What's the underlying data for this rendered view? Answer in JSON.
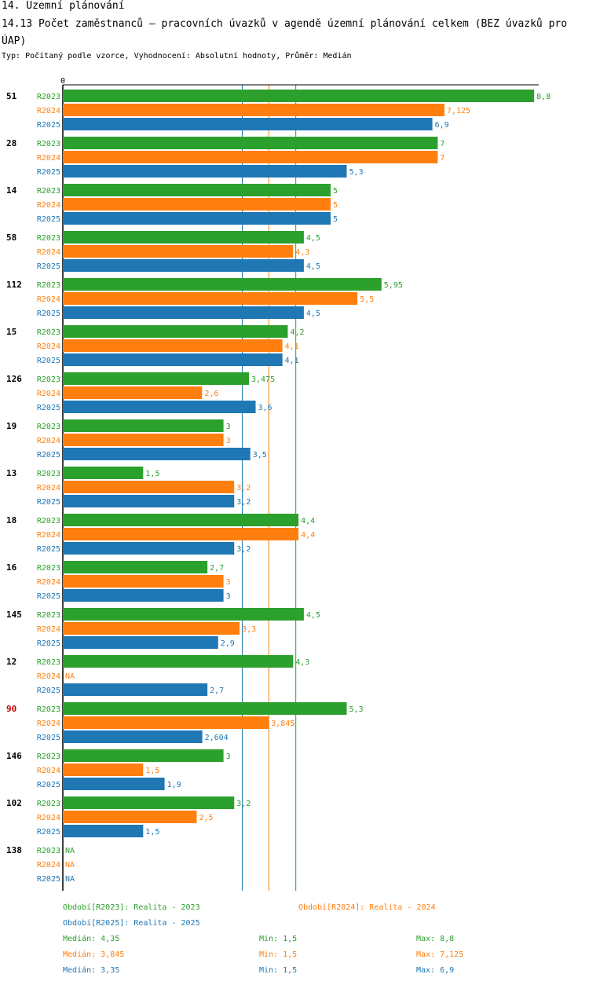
{
  "section_title": "14. Územní plánování",
  "chart_title": "14.13 Počet zaměstnanců – pracovních úvazků v agendě územní plánování celkem (BEZ úvazků pro ÚAP)",
  "subtitle": "Typ: Počítaný podle vzorce, Vyhodnocení: Absolutní hodnoty, Průměr: Medián",
  "colors": {
    "R2023": "#2ca02c",
    "R2024": "#ff7f0e",
    "R2025": "#1f77b4",
    "highlight": "#cc0000"
  },
  "chart_data": {
    "type": "bar",
    "orientation": "horizontal",
    "x_axis_label": "0",
    "xlim": [
      0,
      8.8
    ],
    "series_names": [
      "R2023",
      "R2024",
      "R2025"
    ],
    "groups": [
      {
        "id": "51",
        "highlight": false,
        "values": [
          8.8,
          7.125,
          6.9
        ],
        "labels": [
          "8,8",
          "7,125",
          "6,9"
        ]
      },
      {
        "id": "28",
        "highlight": false,
        "values": [
          7,
          7,
          5.3
        ],
        "labels": [
          "7",
          "7",
          "5,3"
        ]
      },
      {
        "id": "14",
        "highlight": false,
        "values": [
          5,
          5,
          5
        ],
        "labels": [
          "5",
          "5",
          "5"
        ]
      },
      {
        "id": "58",
        "highlight": false,
        "values": [
          4.5,
          4.3,
          4.5
        ],
        "labels": [
          "4,5",
          "4,3",
          "4,5"
        ]
      },
      {
        "id": "112",
        "highlight": false,
        "values": [
          5.95,
          5.5,
          4.5
        ],
        "labels": [
          "5,95",
          "5,5",
          "4,5"
        ]
      },
      {
        "id": "15",
        "highlight": false,
        "values": [
          4.2,
          4.1,
          4.1
        ],
        "labels": [
          "4,2",
          "4,1",
          "4,1"
        ]
      },
      {
        "id": "126",
        "highlight": false,
        "values": [
          3.475,
          2.6,
          3.6
        ],
        "labels": [
          "3,475",
          "2,6",
          "3,6"
        ]
      },
      {
        "id": "19",
        "highlight": false,
        "values": [
          3,
          3,
          3.5
        ],
        "labels": [
          "3",
          "3",
          "3,5"
        ]
      },
      {
        "id": "13",
        "highlight": false,
        "values": [
          1.5,
          3.2,
          3.2
        ],
        "labels": [
          "1,5",
          "3,2",
          "3,2"
        ]
      },
      {
        "id": "18",
        "highlight": false,
        "values": [
          4.4,
          4.4,
          3.2
        ],
        "labels": [
          "4,4",
          "4,4",
          "3,2"
        ]
      },
      {
        "id": "16",
        "highlight": false,
        "values": [
          2.7,
          3,
          3
        ],
        "labels": [
          "2,7",
          "3",
          "3"
        ]
      },
      {
        "id": "145",
        "highlight": false,
        "values": [
          4.5,
          3.3,
          2.9
        ],
        "labels": [
          "4,5",
          "3,3",
          "2,9"
        ]
      },
      {
        "id": "12",
        "highlight": false,
        "values": [
          4.3,
          null,
          2.7
        ],
        "labels": [
          "4,3",
          "NA",
          "2,7"
        ]
      },
      {
        "id": "90",
        "highlight": true,
        "values": [
          5.3,
          3.845,
          2.604
        ],
        "labels": [
          "5,3",
          "3,845",
          "2,604"
        ]
      },
      {
        "id": "146",
        "highlight": false,
        "values": [
          3,
          1.5,
          1.9
        ],
        "labels": [
          "3",
          "1,5",
          "1,9"
        ]
      },
      {
        "id": "102",
        "highlight": false,
        "values": [
          3.2,
          2.5,
          1.5
        ],
        "labels": [
          "3,2",
          "2,5",
          "1,5"
        ]
      },
      {
        "id": "138",
        "highlight": false,
        "values": [
          null,
          null,
          null
        ],
        "labels": [
          "NA",
          "NA",
          "NA"
        ]
      }
    ],
    "median_lines": [
      4.35,
      3.845,
      3.35
    ]
  },
  "legend": {
    "period_2023": "Období[R2023]: Realita - 2023",
    "period_2024": "Období[R2024]: Realita - 2024",
    "period_2025": "Období[R2025]: Realita - 2025",
    "stats": [
      {
        "median": "Medián: 4,35",
        "min": "Min: 1,5",
        "max": "Max: 8,8"
      },
      {
        "median": "Medián: 3,845",
        "min": "Min: 1,5",
        "max": "Max: 7,125"
      },
      {
        "median": "Medián: 3,35",
        "min": "Min: 1,5",
        "max": "Max: 6,9"
      }
    ]
  }
}
